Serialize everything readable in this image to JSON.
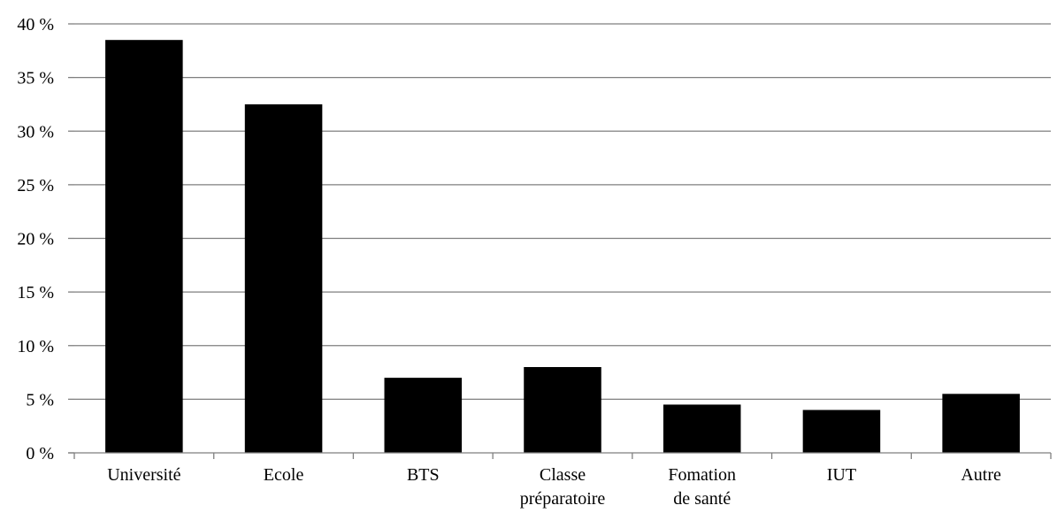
{
  "chart_data": {
    "type": "bar",
    "title": "",
    "xlabel": "",
    "ylabel": "",
    "categories": [
      [
        "Université"
      ],
      [
        "Ecole"
      ],
      [
        "BTS"
      ],
      [
        "Classe",
        "préparatoire"
      ],
      [
        "Fomation",
        "de santé"
      ],
      [
        "IUT"
      ],
      [
        "Autre"
      ]
    ],
    "values": [
      38.5,
      32.5,
      7.0,
      8.0,
      4.5,
      4.0,
      5.5
    ],
    "ylim": [
      0,
      40
    ],
    "yticks": [
      0,
      5,
      10,
      15,
      20,
      25,
      30,
      35,
      40
    ],
    "ytick_labels": [
      "0 %",
      "5 %",
      "10 %",
      "15 %",
      "20 %",
      "25 %",
      "30 %",
      "35 %",
      "40 %"
    ],
    "grid": true,
    "legend": "none",
    "colors": {
      "bar": "#000000",
      "grid": "#7f7f7f"
    }
  }
}
